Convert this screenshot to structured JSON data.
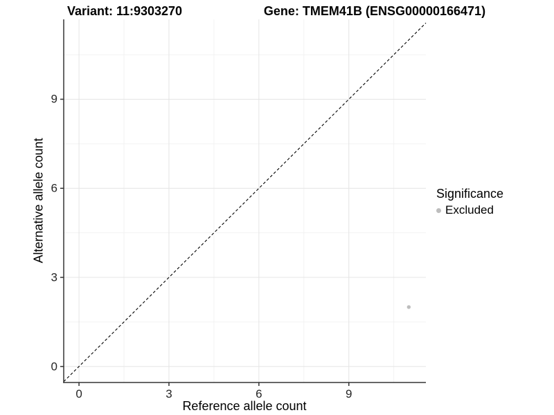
{
  "figure": {
    "titles": {
      "variant": "Variant: 11:9303270",
      "gene": "Gene: TMEM41B (ENSG00000166471)"
    }
  },
  "legend": {
    "title": "Significance",
    "position": "right",
    "items": [
      {
        "label": "Excluded",
        "color": "#bdbdbd"
      }
    ]
  },
  "chart_data": {
    "type": "scatter",
    "xlabel": "Reference allele count",
    "ylabel": "Alternative allele count",
    "xlim": [
      -0.51,
      11.57
    ],
    "ylim": [
      -0.54,
      11.69
    ],
    "xticks": [
      0,
      3,
      6,
      9
    ],
    "yticks": [
      0,
      3,
      6,
      9
    ],
    "xticks_minor": [
      1.5,
      4.5,
      7.5,
      10.5
    ],
    "yticks_minor": [
      1.5,
      4.5,
      7.5,
      10.5
    ],
    "grid": "major+minor",
    "reference_line": {
      "type": "identity",
      "slope": 1,
      "intercept": 0,
      "style": "dashed",
      "color": "#000000"
    },
    "series": [
      {
        "name": "Excluded",
        "color": "#bdbdbd",
        "point_radius": 2.7,
        "points": [
          {
            "x": 11,
            "y": 2
          }
        ]
      }
    ],
    "colors": {
      "axis": "#333333",
      "grid_major": "#e4e4e4",
      "grid_minor": "#f2f2f2",
      "tick_text": "#262626"
    }
  }
}
